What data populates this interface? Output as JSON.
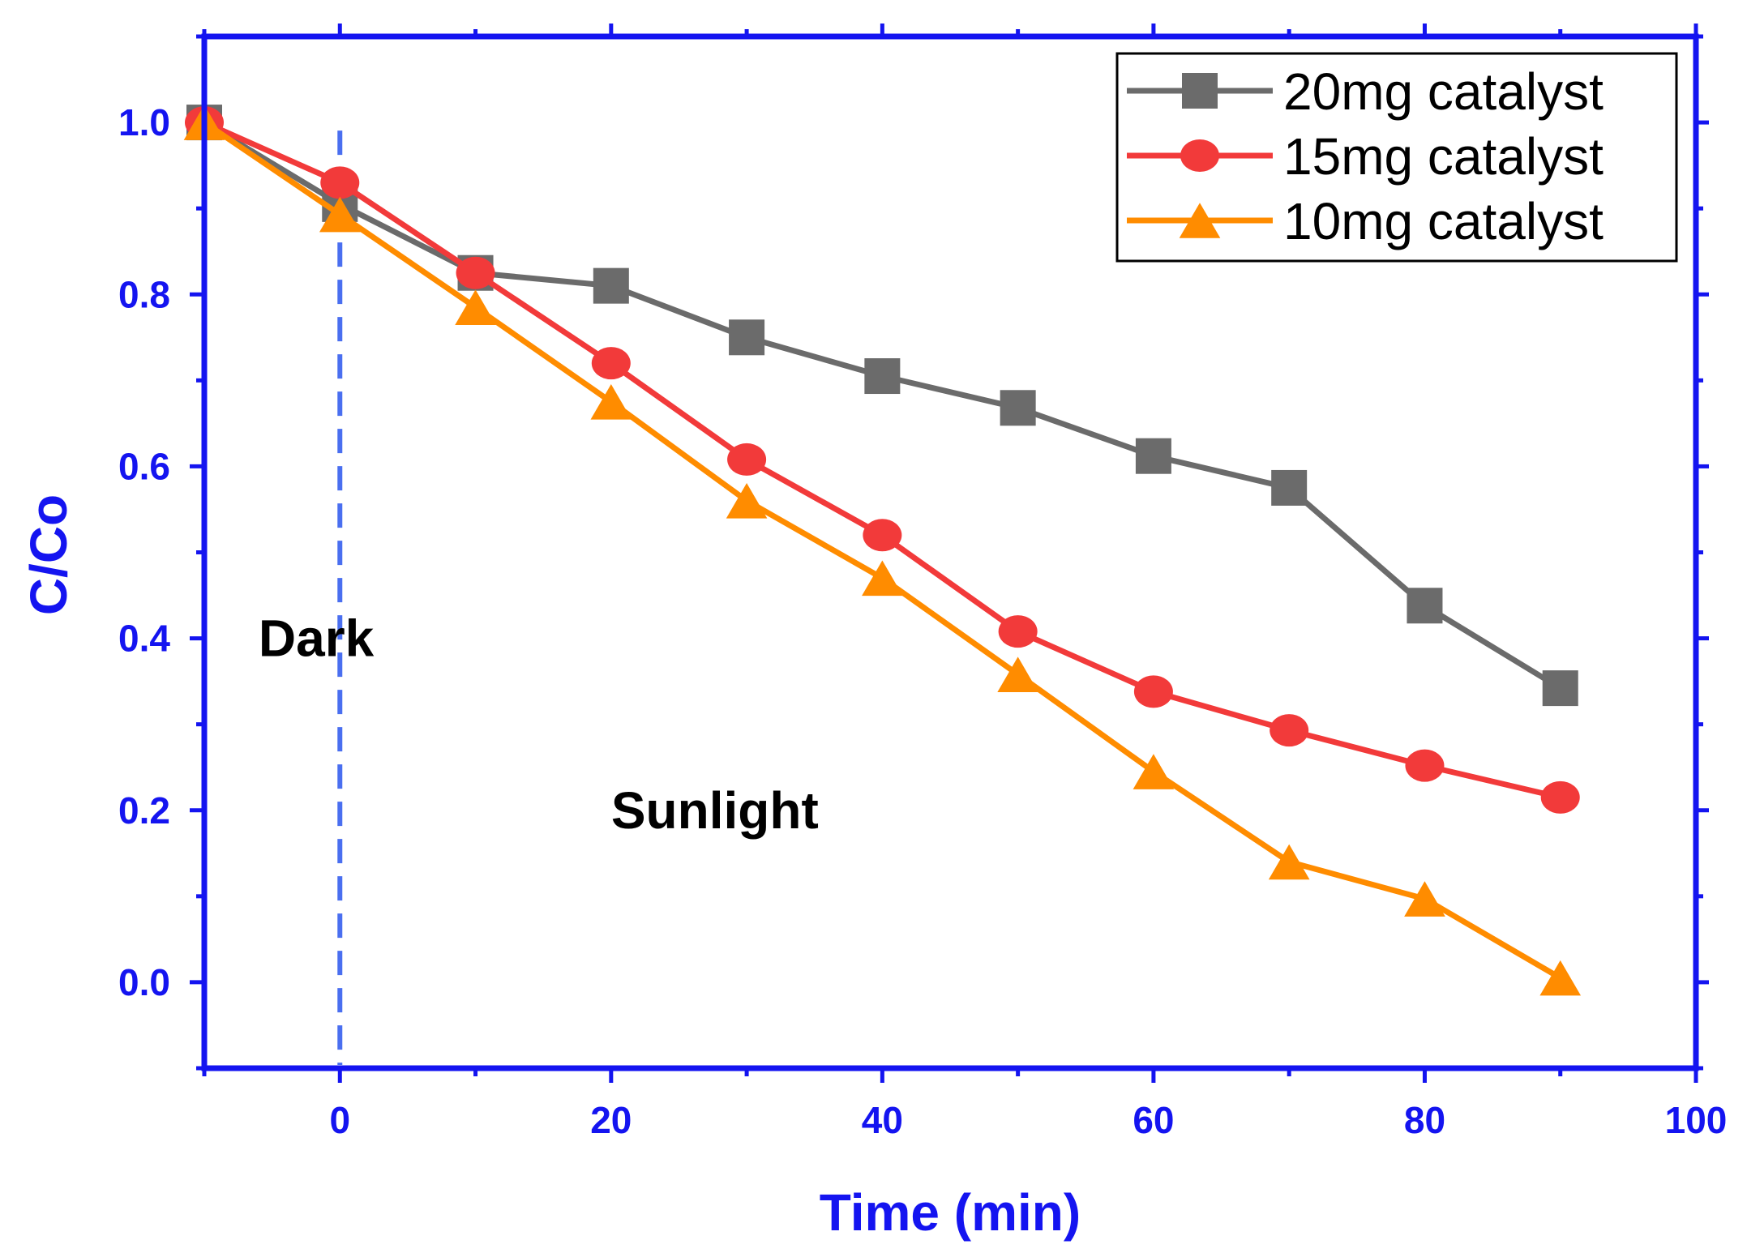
{
  "chart_data": {
    "type": "line",
    "title": "",
    "xlabel": "Time (min)",
    "ylabel": "C/Co",
    "xlim": [
      -10,
      100
    ],
    "ylim": [
      -0.1,
      1.1
    ],
    "xticks": [
      0,
      20,
      40,
      60,
      80,
      100
    ],
    "xtick_labels": [
      "0",
      "20",
      "40",
      "60",
      "80",
      "100"
    ],
    "yticks": [
      0.0,
      0.2,
      0.4,
      0.6,
      0.8,
      1.0
    ],
    "ytick_labels": [
      "0.0",
      "0.2",
      "0.4",
      "0.6",
      "0.8",
      "1.0"
    ],
    "grid": false,
    "axis_color": "#1414f0",
    "legend_position": "top-right",
    "x": [
      -10,
      0,
      10,
      20,
      30,
      40,
      50,
      60,
      70,
      80,
      90
    ],
    "series": [
      {
        "name": "20mg catalyst",
        "marker": "square",
        "color": "#6b6b6b",
        "values": [
          1.0,
          0.905,
          0.825,
          0.81,
          0.75,
          0.705,
          0.668,
          0.612,
          0.575,
          0.438,
          0.342
        ]
      },
      {
        "name": "15mg catalyst",
        "marker": "circle",
        "color": "#f23a3a",
        "values": [
          1.0,
          0.93,
          0.825,
          0.72,
          0.608,
          0.52,
          0.408,
          0.338,
          0.293,
          0.252,
          0.215
        ]
      },
      {
        "name": "10mg catalyst",
        "marker": "triangle",
        "color": "#ff8c00",
        "values": [
          1.0,
          0.893,
          0.785,
          0.675,
          0.56,
          0.47,
          0.358,
          0.245,
          0.14,
          0.097,
          0.005
        ]
      }
    ],
    "annotations": [
      {
        "text": "Dark",
        "x": -6,
        "y": 0.4
      },
      {
        "text": "Sunlight",
        "x": 20,
        "y": 0.2
      }
    ],
    "reference_lines": [
      {
        "orientation": "vertical",
        "x": 0,
        "style": "dashed",
        "color": "#4a6ff0"
      }
    ]
  }
}
